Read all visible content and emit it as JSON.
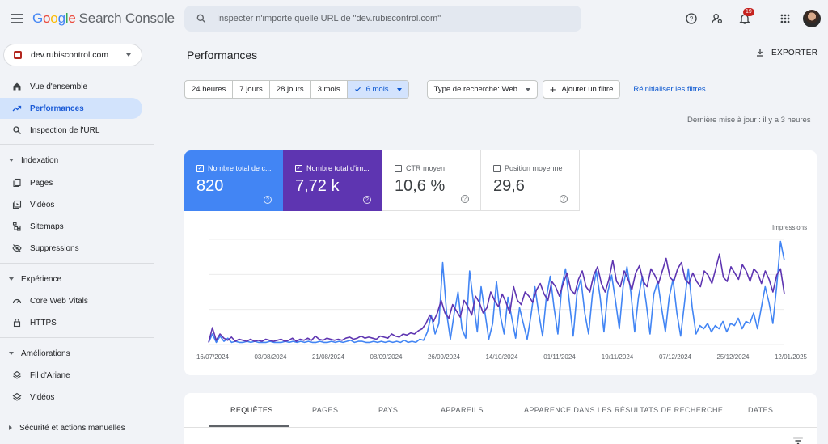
{
  "app": {
    "logo_google": [
      "G",
      "o",
      "o",
      "g",
      "l",
      "e"
    ],
    "logo_rest": "Search Console"
  },
  "search": {
    "placeholder": "Inspecter n'importe quelle URL de \"dev.rubiscontrol.com\""
  },
  "header": {
    "notifications_count": "19"
  },
  "property": {
    "name": "dev.rubiscontrol.com"
  },
  "sidebar": {
    "items": [
      {
        "label": "Vue d'ensemble",
        "icon": "home-icon"
      },
      {
        "label": "Performances",
        "icon": "trending-up-icon",
        "active": true
      },
      {
        "label": "Inspection de l'URL",
        "icon": "search-icon"
      }
    ],
    "indexation": {
      "title": "Indexation",
      "items": [
        "Pages",
        "Vidéos",
        "Sitemaps",
        "Suppressions"
      ]
    },
    "experience": {
      "title": "Expérience",
      "items": [
        "Core Web Vitals",
        "HTTPS"
      ]
    },
    "ameliorations": {
      "title": "Améliorations",
      "items": [
        "Fil d'Ariane",
        "Vidéos"
      ]
    },
    "securite": {
      "title": "Sécurité et actions manuelles"
    }
  },
  "page": {
    "title": "Performances",
    "export_label": "EXPORTER"
  },
  "filters": {
    "ranges": [
      "24 heures",
      "7 jours",
      "28 jours",
      "3 mois",
      "6 mois"
    ],
    "selected_range": "6 mois",
    "search_type": "Type de recherche: Web",
    "add_filter": "Ajouter un filtre",
    "reset": "Réinitialiser les filtres"
  },
  "updated": "Dernière mise à jour : il y a 3 heures",
  "metrics": [
    {
      "label": "Nombre total de c...",
      "value": "820",
      "checked": true,
      "color": "#4285f4"
    },
    {
      "label": "Nombre total d'im...",
      "value": "7,72 k",
      "checked": true,
      "color": "#5e35b1"
    },
    {
      "label": "CTR moyen",
      "value": "10,6 %",
      "checked": false
    },
    {
      "label": "Position moyenne",
      "value": "29,6",
      "checked": false
    }
  ],
  "chart_data": {
    "type": "line",
    "x_tick_labels": [
      "16/07/2024",
      "03/08/2024",
      "21/08/2024",
      "08/09/2024",
      "26/09/2024",
      "14/10/2024",
      "01/11/2024",
      "19/11/2024",
      "07/12/2024",
      "25/12/2024",
      "12/01/2025"
    ],
    "right_axis_label": "Impressions",
    "grid": true,
    "series": [
      {
        "name": "Nombre total de clics",
        "color": "#4285f4",
        "values": [
          0.02,
          0.1,
          0.02,
          0.08,
          0.03,
          0.06,
          0.02,
          0.03,
          0.02,
          0.02,
          0.03,
          0.02,
          0.03,
          0.02,
          0.02,
          0.02,
          0.03,
          0.02,
          0.02,
          0.02,
          0.03,
          0.02,
          0.03,
          0.02,
          0.03,
          0.02,
          0.03,
          0.02,
          0.02,
          0.03,
          0.02,
          0.02,
          0.03,
          0.02,
          0.03,
          0.02,
          0.03,
          0.04,
          0.02,
          0.03,
          0.03,
          0.02,
          0.02,
          0.03,
          0.02,
          0.03,
          0.02,
          0.03,
          0.02,
          0.03,
          0.02,
          0.04,
          0.02,
          0.03,
          0.02,
          0.05,
          0.04,
          0.12,
          0.28,
          0.1,
          0.2,
          0.78,
          0.3,
          0.05,
          0.3,
          0.5,
          0.15,
          0.06,
          0.7,
          0.4,
          0.12,
          0.55,
          0.3,
          0.05,
          0.2,
          0.6,
          0.28,
          0.1,
          0.45,
          0.25,
          0.06,
          0.35,
          0.2,
          0.05,
          0.28,
          0.55,
          0.3,
          0.08,
          0.45,
          0.65,
          0.35,
          0.1,
          0.55,
          0.72,
          0.4,
          0.08,
          0.5,
          0.62,
          0.3,
          0.1,
          0.48,
          0.7,
          0.45,
          0.12,
          0.5,
          0.66,
          0.42,
          0.15,
          0.55,
          0.74,
          0.5,
          0.12,
          0.45,
          0.65,
          0.4,
          0.1,
          0.48,
          0.6,
          0.35,
          0.12,
          0.45,
          0.62,
          0.3,
          0.08,
          0.4,
          0.72,
          0.35,
          0.1,
          0.18,
          0.15,
          0.2,
          0.12,
          0.18,
          0.15,
          0.22,
          0.12,
          0.2,
          0.18,
          0.25,
          0.15,
          0.22,
          0.2,
          0.3,
          0.15,
          0.35,
          0.55,
          0.4,
          0.2,
          0.55,
          0.98,
          0.8
        ]
      },
      {
        "name": "Nombre total d'impressions",
        "color": "#5e35b1",
        "values": [
          0.02,
          0.16,
          0.04,
          0.1,
          0.06,
          0.04,
          0.07,
          0.03,
          0.05,
          0.04,
          0.03,
          0.05,
          0.03,
          0.04,
          0.03,
          0.05,
          0.04,
          0.03,
          0.04,
          0.05,
          0.03,
          0.04,
          0.06,
          0.03,
          0.05,
          0.04,
          0.06,
          0.04,
          0.08,
          0.05,
          0.04,
          0.06,
          0.05,
          0.04,
          0.05,
          0.04,
          0.06,
          0.07,
          0.05,
          0.06,
          0.08,
          0.06,
          0.07,
          0.06,
          0.05,
          0.08,
          0.07,
          0.06,
          0.1,
          0.08,
          0.07,
          0.1,
          0.09,
          0.11,
          0.1,
          0.13,
          0.15,
          0.2,
          0.28,
          0.22,
          0.3,
          0.42,
          0.3,
          0.25,
          0.38,
          0.32,
          0.26,
          0.42,
          0.36,
          0.28,
          0.46,
          0.4,
          0.3,
          0.35,
          0.5,
          0.42,
          0.36,
          0.48,
          0.4,
          0.3,
          0.55,
          0.42,
          0.38,
          0.5,
          0.46,
          0.4,
          0.52,
          0.58,
          0.48,
          0.42,
          0.6,
          0.55,
          0.46,
          0.58,
          0.68,
          0.52,
          0.48,
          0.62,
          0.7,
          0.55,
          0.5,
          0.66,
          0.74,
          0.58,
          0.5,
          0.62,
          0.8,
          0.6,
          0.55,
          0.7,
          0.62,
          0.52,
          0.68,
          0.75,
          0.6,
          0.55,
          0.72,
          0.66,
          0.58,
          0.7,
          0.82,
          0.64,
          0.6,
          0.72,
          0.78,
          0.62,
          0.58,
          0.68,
          0.6,
          0.55,
          0.7,
          0.66,
          0.58,
          0.72,
          0.86,
          0.64,
          0.6,
          0.74,
          0.68,
          0.62,
          0.76,
          0.7,
          0.6,
          0.72,
          0.68,
          0.58,
          0.7,
          0.62,
          0.5,
          0.66,
          0.72,
          0.48
        ]
      }
    ]
  },
  "tabs": [
    "REQUÊTES",
    "PAGES",
    "PAYS",
    "APPAREILS",
    "APPARENCE DANS LES RÉSULTATS DE RECHERCHE",
    "DATES"
  ]
}
